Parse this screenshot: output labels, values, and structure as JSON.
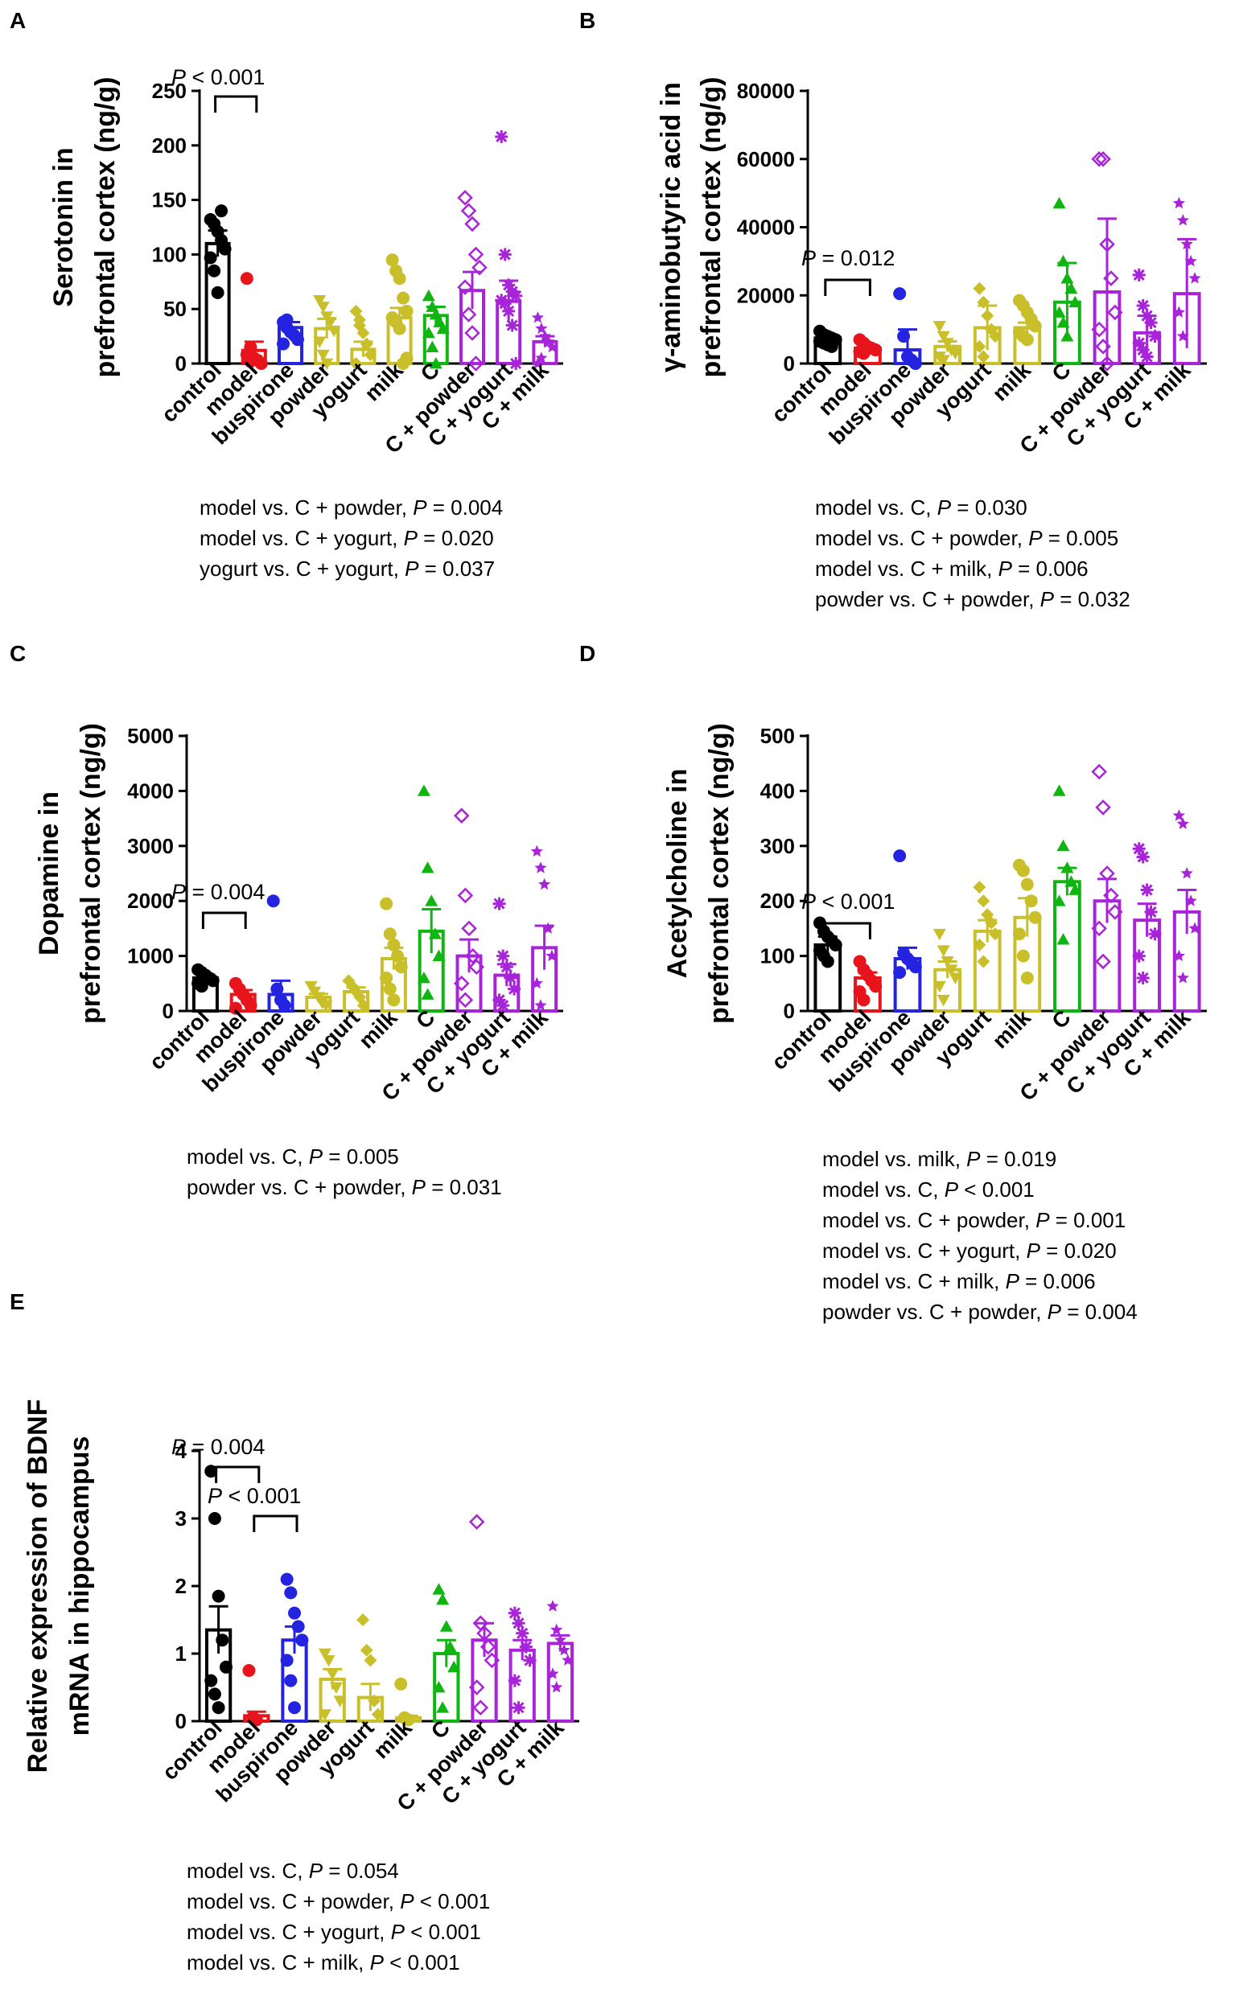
{
  "chart_data": [
    {
      "panel": "A",
      "type": "bar",
      "ylabel": [
        "Serotonin in",
        "prefrontal cortex (ng/g)"
      ],
      "yticks": [
        "0",
        "50",
        "100",
        "150",
        "200",
        "250"
      ],
      "ylim": [
        0,
        250
      ],
      "categories": [
        "control",
        "model",
        "buspirone",
        "powder",
        "yogurt",
        "milk",
        "C",
        "C + powder",
        "C + yogurt",
        "C + milk"
      ],
      "values": [
        110,
        12,
        33,
        32,
        13,
        42,
        44,
        67,
        57,
        20
      ],
      "errors": [
        12,
        8,
        5,
        9,
        7,
        9,
        8,
        17,
        19,
        5
      ],
      "points": [
        [
          132,
          128,
          121,
          113,
          105,
          97,
          85,
          65,
          140
        ],
        [
          78,
          15,
          5,
          3,
          0,
          8,
          2
        ],
        [
          38,
          33,
          29,
          26,
          22,
          18,
          40
        ],
        [
          58,
          52,
          43,
          38,
          30,
          20,
          8,
          0
        ],
        [
          48,
          40,
          28,
          18,
          8,
          0,
          35
        ],
        [
          95,
          85,
          78,
          60,
          48,
          42,
          38,
          32,
          0,
          5
        ],
        [
          62,
          52,
          45,
          38,
          32,
          28,
          15,
          0
        ],
        [
          152,
          140,
          128,
          100,
          88,
          70,
          45,
          28,
          0
        ],
        [
          208,
          100,
          72,
          66,
          62,
          58,
          55,
          48,
          35,
          0
        ],
        [
          42,
          32,
          25,
          20,
          15,
          0,
          5
        ]
      ],
      "comparison": {
        "from": 0,
        "to": 1,
        "label": "P < 0.001"
      },
      "stats": [
        {
          "text": "model vs. C + powder, ",
          "p": "P",
          "rest": " = 0.004"
        },
        {
          "text": "model vs. C + yogurt, ",
          "p": "P",
          "rest": " = 0.020"
        },
        {
          "text": "yogurt vs. C + yogurt, ",
          "p": "P",
          "rest": " = 0.037"
        }
      ]
    },
    {
      "panel": "B",
      "type": "bar",
      "ylabel": [
        "γ-aminobutyric acid  in",
        "prefrontal cortex (ng/g)"
      ],
      "yticks": [
        "0",
        "20000",
        "40000",
        "60000",
        "80000"
      ],
      "ylim": [
        0,
        80000
      ],
      "categories": [
        "control",
        "model",
        "buspirone",
        "powder",
        "yogurt",
        "milk",
        "C",
        "C + powder",
        "C + yogurt",
        "C + milk"
      ],
      "values": [
        7500,
        4500,
        4000,
        5000,
        10500,
        10500,
        18000,
        21000,
        9000,
        20500
      ],
      "errors": [
        1000,
        800,
        6000,
        1500,
        6500,
        1500,
        11500,
        21500,
        5000,
        16000
      ],
      "points": [
        [
          9500,
          8500,
          8000,
          7500,
          7000,
          6500,
          6000,
          5500,
          5000
        ],
        [
          7000,
          6000,
          5000,
          4500,
          4000,
          3500,
          3000
        ],
        [
          20500,
          8000,
          2000,
          1000,
          0
        ],
        [
          11000,
          8000,
          6000,
          4000,
          3000,
          2000,
          1000
        ],
        [
          22000,
          18000,
          14000,
          10000,
          8000,
          5000,
          2000
        ],
        [
          18500,
          17000,
          15000,
          13000,
          11000,
          9000,
          8000,
          7000
        ],
        [
          47000,
          30000,
          25000,
          22000,
          18000,
          15000,
          12000,
          8000
        ],
        [
          60000,
          60000,
          35000,
          25000,
          15000,
          10000,
          5000,
          0
        ],
        [
          26000,
          17000,
          14000,
          12000,
          8000,
          6000,
          4000,
          2000
        ],
        [
          47000,
          42000,
          35000,
          30000,
          25000,
          15000,
          8000
        ]
      ],
      "comparison": {
        "from": 0,
        "to": 1,
        "label": "P = 0.012"
      },
      "stats": [
        {
          "text": "model vs. C, ",
          "p": "P",
          "rest": " = 0.030"
        },
        {
          "text": "model vs. C + powder, ",
          "p": "P",
          "rest": " = 0.005"
        },
        {
          "text": "model vs. C + milk, ",
          "p": "P",
          "rest": " = 0.006"
        },
        {
          "text": "powder vs. C + powder, ",
          "p": "P",
          "rest": " = 0.032"
        }
      ]
    },
    {
      "panel": "C",
      "type": "bar",
      "ylabel": [
        "Dopamine in",
        "prefrontal cortex (ng/g)"
      ],
      "yticks": [
        "0",
        "1000",
        "2000",
        "3000",
        "4000",
        "5000"
      ],
      "ylim": [
        0,
        5000
      ],
      "categories": [
        "control",
        "model",
        "buspirone",
        "powder",
        "yogurt",
        "milk",
        "C",
        "C + powder",
        "C + yogurt",
        "C + milk"
      ],
      "values": [
        600,
        300,
        300,
        250,
        350,
        950,
        1450,
        1000,
        650,
        1150
      ],
      "errors": [
        60,
        80,
        250,
        60,
        80,
        200,
        400,
        300,
        200,
        400
      ],
      "points": [
        [
          750,
          700,
          650,
          600,
          550,
          500,
          450
        ],
        [
          500,
          400,
          300,
          200,
          100,
          50
        ],
        [
          2000,
          400,
          200,
          100
        ],
        [
          450,
          350,
          250,
          150,
          100
        ],
        [
          550,
          450,
          350,
          250,
          100
        ],
        [
          1950,
          1400,
          1200,
          1000,
          800,
          600,
          400,
          200
        ],
        [
          4000,
          2600,
          2000,
          1400,
          1000,
          600,
          300
        ],
        [
          3550,
          2100,
          1500,
          1000,
          800,
          500,
          200
        ],
        [
          1950,
          1000,
          800,
          600,
          400,
          200,
          100
        ],
        [
          2900,
          2600,
          2300,
          1500,
          1000,
          500,
          100
        ]
      ],
      "comparison": {
        "from": 0,
        "to": 1,
        "label": "P = 0.004"
      },
      "stats": [
        {
          "text": "model vs. C, ",
          "p": "P",
          "rest": " = 0.005"
        },
        {
          "text": "powder vs. C + powder, ",
          "p": "P",
          "rest": " = 0.031"
        }
      ]
    },
    {
      "panel": "D",
      "type": "bar",
      "ylabel": [
        "Acetylcholine in",
        "prefrontal cortex (ng/g)"
      ],
      "yticks": [
        "0",
        "100",
        "200",
        "300",
        "400",
        "500"
      ],
      "ylim": [
        0,
        500
      ],
      "categories": [
        "control",
        "model",
        "buspirone",
        "powder",
        "yogurt",
        "milk",
        "C",
        "C + powder",
        "C + yogurt",
        "C + milk"
      ],
      "values": [
        120,
        60,
        95,
        75,
        145,
        170,
        235,
        200,
        165,
        180
      ],
      "errors": [
        15,
        10,
        20,
        15,
        20,
        35,
        25,
        40,
        30,
        40
      ],
      "points": [
        [
          160,
          145,
          135,
          128,
          120,
          110,
          100,
          90
        ],
        [
          90,
          75,
          65,
          55,
          45,
          35,
          20
        ],
        [
          282,
          105,
          95,
          88,
          80,
          70
        ],
        [
          140,
          110,
          90,
          75,
          60,
          45,
          20
        ],
        [
          225,
          200,
          175,
          160,
          140,
          120,
          90
        ],
        [
          265,
          255,
          230,
          200,
          170,
          140,
          100,
          60
        ],
        [
          400,
          300,
          260,
          235,
          220,
          200,
          130
        ],
        [
          435,
          370,
          250,
          210,
          180,
          150,
          90
        ],
        [
          295,
          280,
          220,
          180,
          140,
          100,
          60
        ],
        [
          355,
          340,
          250,
          200,
          150,
          100,
          60
        ]
      ],
      "comparison": {
        "from": 0,
        "to": 1,
        "label": "P < 0.001"
      },
      "stats": [
        {
          "text": "model vs. milk, ",
          "p": "P",
          "rest": " = 0.019"
        },
        {
          "text": "model vs. C, ",
          "p": "P",
          "rest": " < 0.001"
        },
        {
          "text": "model vs. C + powder, ",
          "p": "P",
          "rest": " = 0.001"
        },
        {
          "text": "model vs. C + yogurt, ",
          "p": "P",
          "rest": " = 0.020"
        },
        {
          "text": "model vs. C + milk, ",
          "p": "P",
          "rest": " = 0.006"
        },
        {
          "text": "powder vs. C + powder, ",
          "p": "P",
          "rest": " = 0.004"
        }
      ]
    },
    {
      "panel": "E",
      "type": "bar",
      "ylabel": [
        "Relative expression of BDNF",
        "mRNA in hippocampus"
      ],
      "yticks": [
        "0",
        "1",
        "2",
        "3",
        "4"
      ],
      "ylim": [
        0,
        4
      ],
      "categories": [
        "control",
        "model",
        "buspirone",
        "powder",
        "yogurt",
        "milk",
        "C",
        "C + powder",
        "C + yogurt",
        "C + milk"
      ],
      "values": [
        1.35,
        0.08,
        1.2,
        0.62,
        0.35,
        0.05,
        1.0,
        1.2,
        1.05,
        1.15
      ],
      "errors": [
        0.35,
        0.06,
        0.2,
        0.15,
        0.2,
        0.03,
        0.2,
        0.25,
        0.15,
        0.12
      ],
      "points": [
        [
          3.7,
          3.0,
          1.85,
          1.2,
          0.8,
          0.6,
          0.4,
          0.2
        ],
        [
          0.75,
          0.05,
          0.02
        ],
        [
          2.1,
          1.9,
          1.6,
          1.4,
          1.2,
          0.9,
          0.6,
          0.2
        ],
        [
          1.0,
          0.9,
          0.7,
          0.5,
          0.3,
          0.1
        ],
        [
          1.5,
          1.05,
          0.9,
          0.3,
          0.1
        ],
        [
          0.55,
          0.05,
          0.02
        ],
        [
          1.95,
          1.8,
          1.4,
          1.1,
          0.8,
          0.5,
          0.2
        ],
        [
          2.95,
          1.45,
          1.3,
          1.1,
          0.9,
          0.5,
          0.2
        ],
        [
          1.6,
          1.45,
          1.3,
          1.1,
          0.9,
          0.6,
          0.2
        ],
        [
          1.7,
          1.35,
          1.2,
          1.05,
          0.9,
          0.7,
          0.5
        ]
      ],
      "comparisons": [
        {
          "from": 0,
          "to": 1,
          "label": "P = 0.004"
        },
        {
          "from": 1,
          "to": 2,
          "label": "P < 0.001"
        }
      ],
      "stats": [
        {
          "text": "model vs. C, ",
          "p": "P",
          "rest": " = 0.054"
        },
        {
          "text": "model vs. C + powder, ",
          "p": "P",
          "rest": " < 0.001"
        },
        {
          "text": "model vs. C + yogurt, ",
          "p": "P",
          "rest": " < 0.001"
        },
        {
          "text": "model vs. C + milk, ",
          "p": "P",
          "rest": " < 0.001"
        }
      ]
    }
  ],
  "group_colors": [
    "#000000",
    "#e8141c",
    "#2424e0",
    "#c9bf2a",
    "#c9bf2a",
    "#c9bf2a",
    "#11b511",
    "#a824d8",
    "#a824d8",
    "#a824d8"
  ],
  "group_markers": [
    "circle",
    "circle",
    "circle",
    "triangle-down",
    "diamond",
    "circle",
    "triangle-up",
    "diamond-open",
    "asterisk",
    "star"
  ]
}
